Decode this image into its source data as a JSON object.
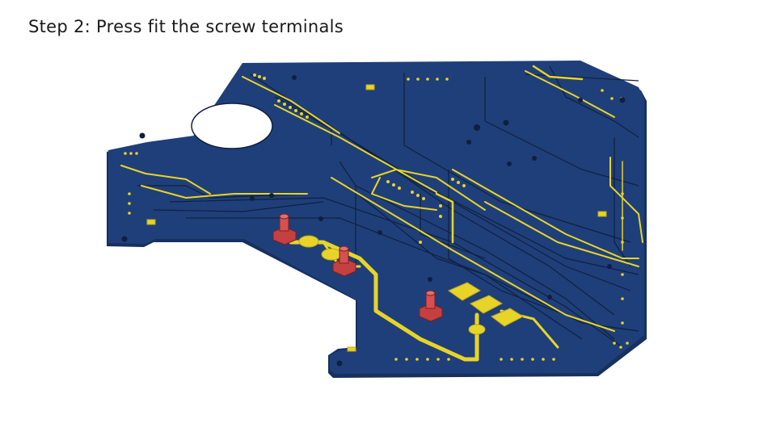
{
  "slide": {
    "title": "Step 2: Press fit the screw terminals"
  },
  "colors": {
    "background": "#ffffff",
    "board": "#1f3f7a",
    "board_edge": "#1a3466",
    "trace_copper": "#e8d428",
    "trace_dark": "#10203f",
    "terminal": "#cc4444",
    "hole": "#ffffff"
  },
  "icons": {
    "terminal": "screw-terminal-icon"
  }
}
